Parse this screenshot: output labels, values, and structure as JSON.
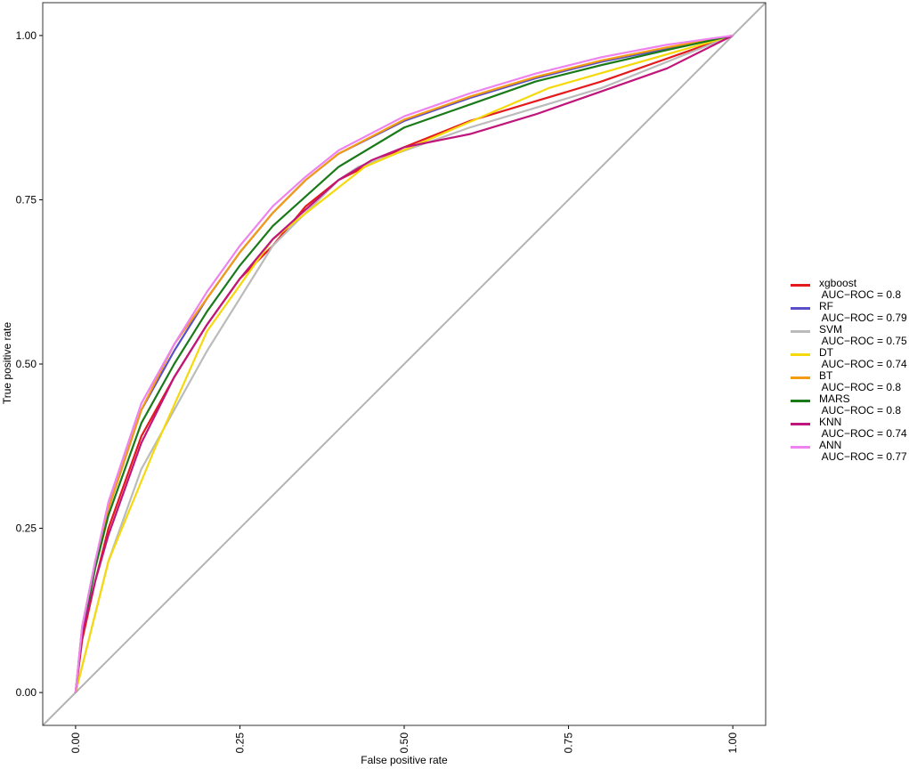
{
  "chart_data": {
    "type": "line",
    "x_label": "False positive rate",
    "y_label": "True positive rate",
    "xlim": [
      -0.05,
      1.05
    ],
    "ylim": [
      -0.05,
      1.05
    ],
    "xticks": [
      {
        "value": 0,
        "label": "0.00"
      },
      {
        "value": 0.25,
        "label": "0.25"
      },
      {
        "value": 0.5,
        "label": "0.50"
      },
      {
        "value": 0.75,
        "label": "0.75"
      },
      {
        "value": 1,
        "label": "1.00"
      }
    ],
    "yticks": [
      {
        "value": 0,
        "label": "0.00"
      },
      {
        "value": 0.25,
        "label": "0.25"
      },
      {
        "value": 0.5,
        "label": "0.50"
      },
      {
        "value": 0.75,
        "label": "0.75"
      },
      {
        "value": 1,
        "label": "1.00"
      }
    ],
    "series": [
      {
        "name": "xgboost\n AUC−ROC = 0.8",
        "color": "#e41a1c",
        "x": [
          0,
          0.01,
          0.03,
          0.05,
          0.1,
          0.15,
          0.2,
          0.25,
          0.3,
          0.35,
          0.4,
          0.5,
          0.6,
          0.7,
          0.8,
          0.9,
          1
        ],
        "values": [
          0,
          0.08,
          0.17,
          0.25,
          0.39,
          0.48,
          0.56,
          0.63,
          0.68,
          0.74,
          0.78,
          0.83,
          0.87,
          0.9,
          0.93,
          0.965,
          1
        ]
      },
      {
        "name": "RF\n AUC−ROC = 0.79",
        "color": "#5a4fc8",
        "x": [
          0,
          0.01,
          0.03,
          0.05,
          0.08,
          0.1,
          0.15,
          0.2,
          0.25,
          0.3,
          0.35,
          0.4,
          0.5,
          0.6,
          0.7,
          0.8,
          0.9,
          1
        ],
        "values": [
          0,
          0.1,
          0.2,
          0.28,
          0.37,
          0.43,
          0.52,
          0.6,
          0.67,
          0.73,
          0.78,
          0.82,
          0.87,
          0.905,
          0.935,
          0.96,
          0.98,
          1
        ]
      },
      {
        "name": "SVM\n AUC−ROC = 0.75",
        "color": "#bbbbbb",
        "x": [
          0,
          0.02,
          0.05,
          0.1,
          0.2,
          0.3,
          0.4,
          0.43,
          0.6,
          0.8,
          1
        ],
        "values": [
          0,
          0.08,
          0.2,
          0.34,
          0.52,
          0.68,
          0.78,
          0.8,
          0.86,
          0.92,
          1
        ]
      },
      {
        "name": "DT\n AUC−ROC = 0.74",
        "color": "#f5d90a",
        "x": [
          0,
          0.05,
          0.12,
          0.2,
          0.3,
          0.44,
          0.72,
          1
        ],
        "values": [
          0,
          0.2,
          0.37,
          0.55,
          0.69,
          0.8,
          0.92,
          1
        ]
      },
      {
        "name": "BT\n AUC−ROC = 0.8",
        "color": "#f39c12",
        "x": [
          0,
          0.01,
          0.03,
          0.05,
          0.08,
          0.1,
          0.15,
          0.2,
          0.25,
          0.3,
          0.35,
          0.4,
          0.5,
          0.6,
          0.7,
          0.8,
          0.9,
          1
        ],
        "values": [
          0,
          0.1,
          0.2,
          0.28,
          0.37,
          0.43,
          0.53,
          0.6,
          0.67,
          0.73,
          0.78,
          0.82,
          0.872,
          0.907,
          0.937,
          0.962,
          0.982,
          1
        ]
      },
      {
        "name": "MARS\n AUC−ROC = 0.8",
        "color": "#1a7a1a",
        "x": [
          0,
          0.01,
          0.03,
          0.05,
          0.1,
          0.15,
          0.2,
          0.25,
          0.3,
          0.4,
          0.5,
          0.6,
          0.7,
          0.8,
          0.9,
          1
        ],
        "values": [
          0,
          0.09,
          0.19,
          0.27,
          0.41,
          0.5,
          0.58,
          0.65,
          0.71,
          0.8,
          0.86,
          0.895,
          0.93,
          0.955,
          0.978,
          1
        ]
      },
      {
        "name": "KNN\n AUC−ROC = 0.74",
        "color": "#c0157a",
        "x": [
          0,
          0.01,
          0.03,
          0.05,
          0.1,
          0.15,
          0.2,
          0.25,
          0.3,
          0.4,
          0.45,
          0.5,
          0.6,
          0.7,
          0.8,
          0.9,
          1
        ],
        "values": [
          0,
          0.09,
          0.17,
          0.24,
          0.38,
          0.48,
          0.56,
          0.63,
          0.69,
          0.78,
          0.81,
          0.83,
          0.85,
          0.88,
          0.915,
          0.95,
          1
        ]
      },
      {
        "name": "ANN\n AUC−ROC = 0.77",
        "color": "#ee82ee",
        "x": [
          0,
          0.01,
          0.03,
          0.05,
          0.08,
          0.1,
          0.15,
          0.2,
          0.25,
          0.3,
          0.35,
          0.4,
          0.5,
          0.6,
          0.7,
          0.8,
          0.9,
          1
        ],
        "values": [
          0,
          0.1,
          0.2,
          0.29,
          0.38,
          0.44,
          0.53,
          0.61,
          0.68,
          0.74,
          0.785,
          0.825,
          0.877,
          0.912,
          0.942,
          0.967,
          0.986,
          1
        ]
      }
    ]
  }
}
